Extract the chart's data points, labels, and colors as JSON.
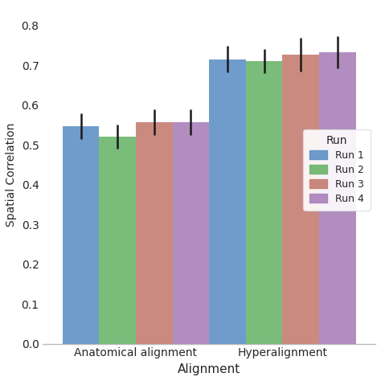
{
  "title": "",
  "xlabel": "Alignment",
  "ylabel": "Spatial Correlation",
  "categories": [
    "Anatomical alignment",
    "Hyperalignment"
  ],
  "runs": [
    "Run 1",
    "Run 2",
    "Run 3",
    "Run 4"
  ],
  "colors": [
    "#5b8ec4",
    "#68b368",
    "#c47a6e",
    "#a87eb8"
  ],
  "values": [
    [
      0.547,
      0.52,
      0.557,
      0.557
    ],
    [
      0.715,
      0.71,
      0.727,
      0.733
    ]
  ],
  "errors": [
    [
      0.033,
      0.03,
      0.033,
      0.033
    ],
    [
      0.033,
      0.03,
      0.043,
      0.04
    ]
  ],
  "ylim": [
    0.0,
    0.85
  ],
  "yticks": [
    0.0,
    0.1,
    0.2,
    0.3,
    0.4,
    0.5,
    0.6,
    0.7,
    0.8
  ],
  "legend_title": "Run",
  "bar_width": 0.15,
  "group_centers": [
    0.25,
    0.85
  ],
  "background_color": "#ffffff",
  "grid_color": "#e8e8e8"
}
